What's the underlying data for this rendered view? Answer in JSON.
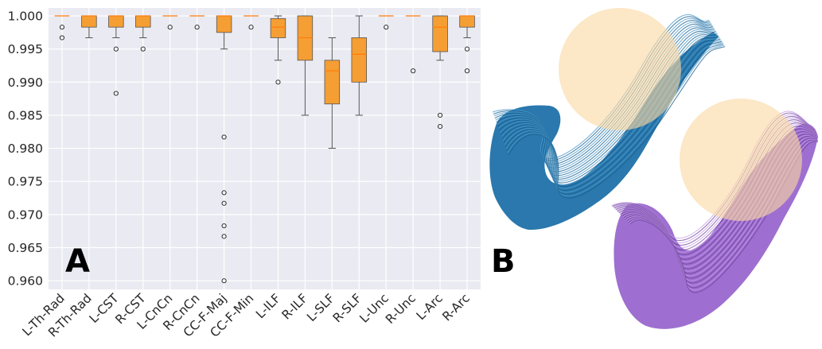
{
  "panels": {
    "a_label": "A",
    "b_label": "B"
  },
  "colors": {
    "plot_bg": "#eaeaf2",
    "grid": "#ffffff",
    "box_fill": "#f59e33",
    "box_edge": "#555555",
    "median": "#ff7f0e",
    "tract_blue": "#2a78ad",
    "tract_purple": "#9e6fd0",
    "highlight": "#fad9a3"
  },
  "chart_data": {
    "type": "box",
    "categories": [
      "L-Th-Rad",
      "R-Th-Rad",
      "L-CST",
      "R-CST",
      "L-CnCn",
      "R-CnCn",
      "CC-F-Maj",
      "CC-F-Min",
      "L-ILF",
      "R-ILF",
      "L-SLF",
      "R-SLF",
      "L-Unc",
      "R-Unc",
      "L-Arc",
      "R-Arc"
    ],
    "yticks": [
      "0.960",
      "0.965",
      "0.970",
      "0.975",
      "0.980",
      "0.985",
      "0.990",
      "0.995",
      "1.000"
    ],
    "ylim": [
      0.9587,
      1.0012
    ],
    "grid": true,
    "boxes": [
      {
        "whislo": 1.0,
        "q1": 1.0,
        "med": 1.0,
        "q3": 1.0,
        "whishi": 1.0,
        "fliers": [
          0.9983,
          0.9967
        ]
      },
      {
        "whislo": 0.9967,
        "q1": 0.9983,
        "med": 1.0,
        "q3": 1.0,
        "whishi": 1.0,
        "fliers": []
      },
      {
        "whislo": 0.9967,
        "q1": 0.9983,
        "med": 1.0,
        "q3": 1.0,
        "whishi": 1.0,
        "fliers": [
          0.995,
          0.9883
        ]
      },
      {
        "whislo": 0.9967,
        "q1": 0.9983,
        "med": 1.0,
        "q3": 1.0,
        "whishi": 1.0,
        "fliers": [
          0.995
        ]
      },
      {
        "whislo": 1.0,
        "q1": 1.0,
        "med": 1.0,
        "q3": 1.0,
        "whishi": 1.0,
        "fliers": [
          0.9983
        ]
      },
      {
        "whislo": 1.0,
        "q1": 1.0,
        "med": 1.0,
        "q3": 1.0,
        "whishi": 1.0,
        "fliers": [
          0.9983
        ]
      },
      {
        "whislo": 0.995,
        "q1": 0.9975,
        "med": 1.0,
        "q3": 1.0,
        "whishi": 1.0,
        "fliers": [
          0.9817,
          0.9733,
          0.9717,
          0.9683,
          0.9667,
          0.96
        ]
      },
      {
        "whislo": 1.0,
        "q1": 1.0,
        "med": 1.0,
        "q3": 1.0,
        "whishi": 1.0,
        "fliers": [
          0.9983
        ]
      },
      {
        "whislo": 0.9933,
        "q1": 0.9967,
        "med": 0.9983,
        "q3": 0.9996,
        "whishi": 1.0,
        "fliers": [
          0.99
        ]
      },
      {
        "whislo": 0.985,
        "q1": 0.9933,
        "med": 0.9967,
        "q3": 1.0,
        "whishi": 1.0,
        "fliers": []
      },
      {
        "whislo": 0.98,
        "q1": 0.9867,
        "med": 0.9917,
        "q3": 0.9933,
        "whishi": 0.9967,
        "fliers": []
      },
      {
        "whislo": 0.985,
        "q1": 0.99,
        "med": 0.9942,
        "q3": 0.9967,
        "whishi": 1.0,
        "fliers": []
      },
      {
        "whislo": 1.0,
        "q1": 1.0,
        "med": 1.0,
        "q3": 1.0,
        "whishi": 1.0,
        "fliers": [
          0.9983
        ]
      },
      {
        "whislo": 1.0,
        "q1": 1.0,
        "med": 1.0,
        "q3": 1.0,
        "whishi": 1.0,
        "fliers": [
          0.9917
        ]
      },
      {
        "whislo": 0.9933,
        "q1": 0.9946,
        "med": 0.9983,
        "q3": 1.0,
        "whishi": 1.0,
        "fliers": [
          0.985,
          0.9833
        ]
      },
      {
        "whislo": 0.9967,
        "q1": 0.9983,
        "med": 1.0,
        "q3": 1.0,
        "whishi": 1.0,
        "fliers": [
          0.995,
          0.9917
        ]
      }
    ]
  }
}
